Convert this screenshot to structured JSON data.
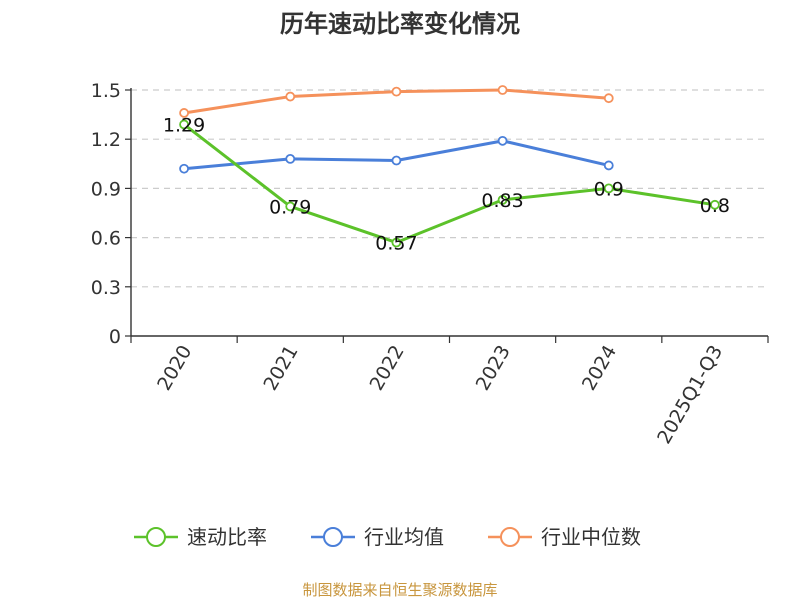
{
  "chart_data": {
    "type": "line",
    "title": "历年速动比率变化情况",
    "categories": [
      "2020",
      "2021",
      "2022",
      "2023",
      "2024",
      "2025Q1-Q3"
    ],
    "ylim": [
      0,
      1.5
    ],
    "yticks": [
      "0",
      "0.3",
      "0.6",
      "0.9",
      "1.2",
      "1.5"
    ],
    "xlabel": "",
    "ylabel": "",
    "grid": true,
    "legend_position": "bottom",
    "series": [
      {
        "name": "速动比率",
        "color": "#5cc22a",
        "values": [
          1.29,
          0.79,
          0.57,
          0.83,
          0.9,
          0.8
        ],
        "labels": [
          "1.29",
          "0.79",
          "0.57",
          "0.83",
          "0.9",
          "0.8"
        ]
      },
      {
        "name": "行业均值",
        "color": "#4a7fd9",
        "values": [
          1.02,
          1.08,
          1.07,
          1.19,
          1.04,
          null
        ]
      },
      {
        "name": "行业中位数",
        "color": "#f5915b",
        "values": [
          1.36,
          1.46,
          1.49,
          1.5,
          1.45,
          null
        ]
      }
    ],
    "source": "制图数据来自恒生聚源数据库"
  }
}
